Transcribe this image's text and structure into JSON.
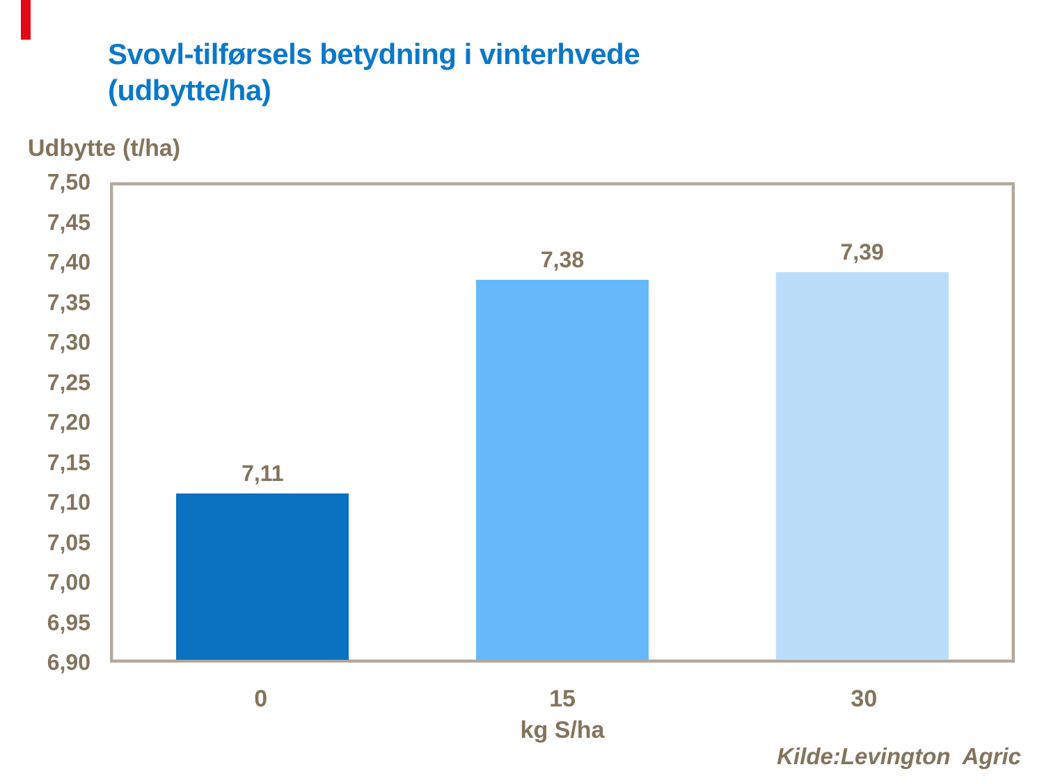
{
  "page": {
    "accent_color": "#e30613",
    "title": "Svovl-tilførsels betydning i vinterhvede\n(udbytte/ha)",
    "title_color": "#0a78c8",
    "text_color": "#84735c",
    "frame_color": "#b2a79b",
    "source_note": "Kilde:Levington  Agric"
  },
  "chart_data": {
    "type": "bar",
    "title": "Svovl-tilførsels betydning i vinterhvede (udbytte/ha)",
    "ylabel": "Udbytte (t/ha)",
    "xlabel": "kg S/ha",
    "categories": [
      "0",
      "15",
      "30"
    ],
    "values": [
      7.11,
      7.38,
      7.39
    ],
    "value_labels": [
      "7,11",
      "7,38",
      "7,39"
    ],
    "bar_colors": [
      "#0a72c0",
      "#66b9f9",
      "#badefa"
    ],
    "ylim": [
      6.9,
      7.5
    ],
    "yticks": [
      "7,50",
      "7,45",
      "7,40",
      "7,35",
      "7,30",
      "7,25",
      "7,20",
      "7,15",
      "7,10",
      "7,05",
      "7,00",
      "6,95",
      "6,90"
    ],
    "grid": false,
    "legend": false,
    "source": "Kilde:Levington  Agric"
  }
}
